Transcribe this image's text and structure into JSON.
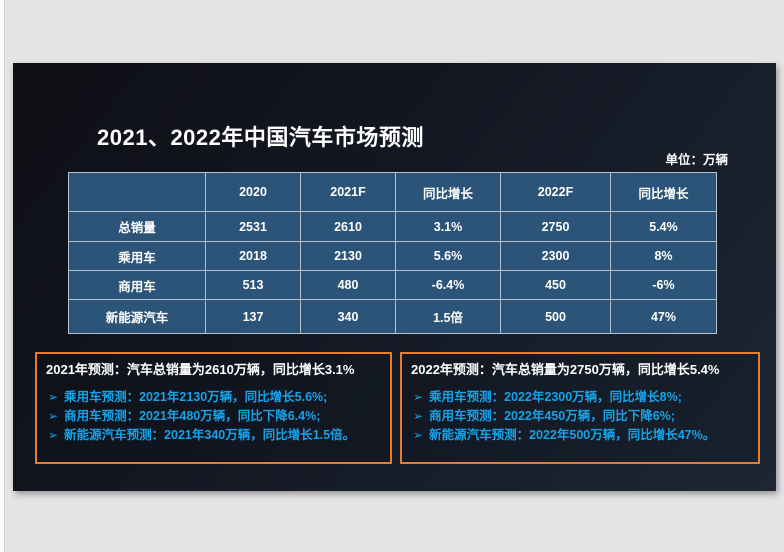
{
  "slide": {
    "title": "2021、2022年中国汽车市场预测",
    "unit_label": "单位：万辆"
  },
  "table": {
    "headers": [
      "",
      "2020",
      "2021F",
      "同比增长",
      "2022F",
      "同比增长"
    ],
    "rows": [
      {
        "label": "总销量",
        "values": [
          "2531",
          "2610",
          "3.1%",
          "2750",
          "5.4%"
        ]
      },
      {
        "label": "乘用车",
        "values": [
          "2018",
          "2130",
          "5.6%",
          "2300",
          "8%"
        ]
      },
      {
        "label": "商用车",
        "values": [
          "513",
          "480",
          "-6.4%",
          "450",
          "-6%"
        ]
      },
      {
        "label": "新能源汽车",
        "values": [
          "137",
          "340",
          "1.5倍",
          "500",
          "47%"
        ]
      }
    ]
  },
  "bullet_icon": "➢",
  "boxes": [
    {
      "heading": "2021年预测：汽车总销量为2610万辆，同比增长3.1%",
      "bullets": [
        "乘用车预测：2021年2130万辆，同比增长5.6%;",
        "商用车预测：2021年480万辆，同比下降6.4%;",
        "新能源汽车预测：2021年340万辆，同比增长1.5倍。"
      ]
    },
    {
      "heading": "2022年预测：汽车总销量为2750万辆，同比增长5.4%",
      "bullets": [
        "乘用车预测：2022年2300万辆，同比增长8%;",
        "商用车预测：2022年450万辆，同比下降6%;",
        "新能源汽车预测：2022年500万辆，同比增长47%。"
      ]
    }
  ],
  "colors": {
    "slide_background_top": "#101016",
    "slide_background_bottom": "#1d2734",
    "canvas_background": "#e4e4e4",
    "table_cell_background": "#2b5478",
    "table_border": "#b4c2d0",
    "accent_orange": "#e87c2e",
    "accent_blue": "#17a2e8",
    "text_white": "#ffffff"
  }
}
